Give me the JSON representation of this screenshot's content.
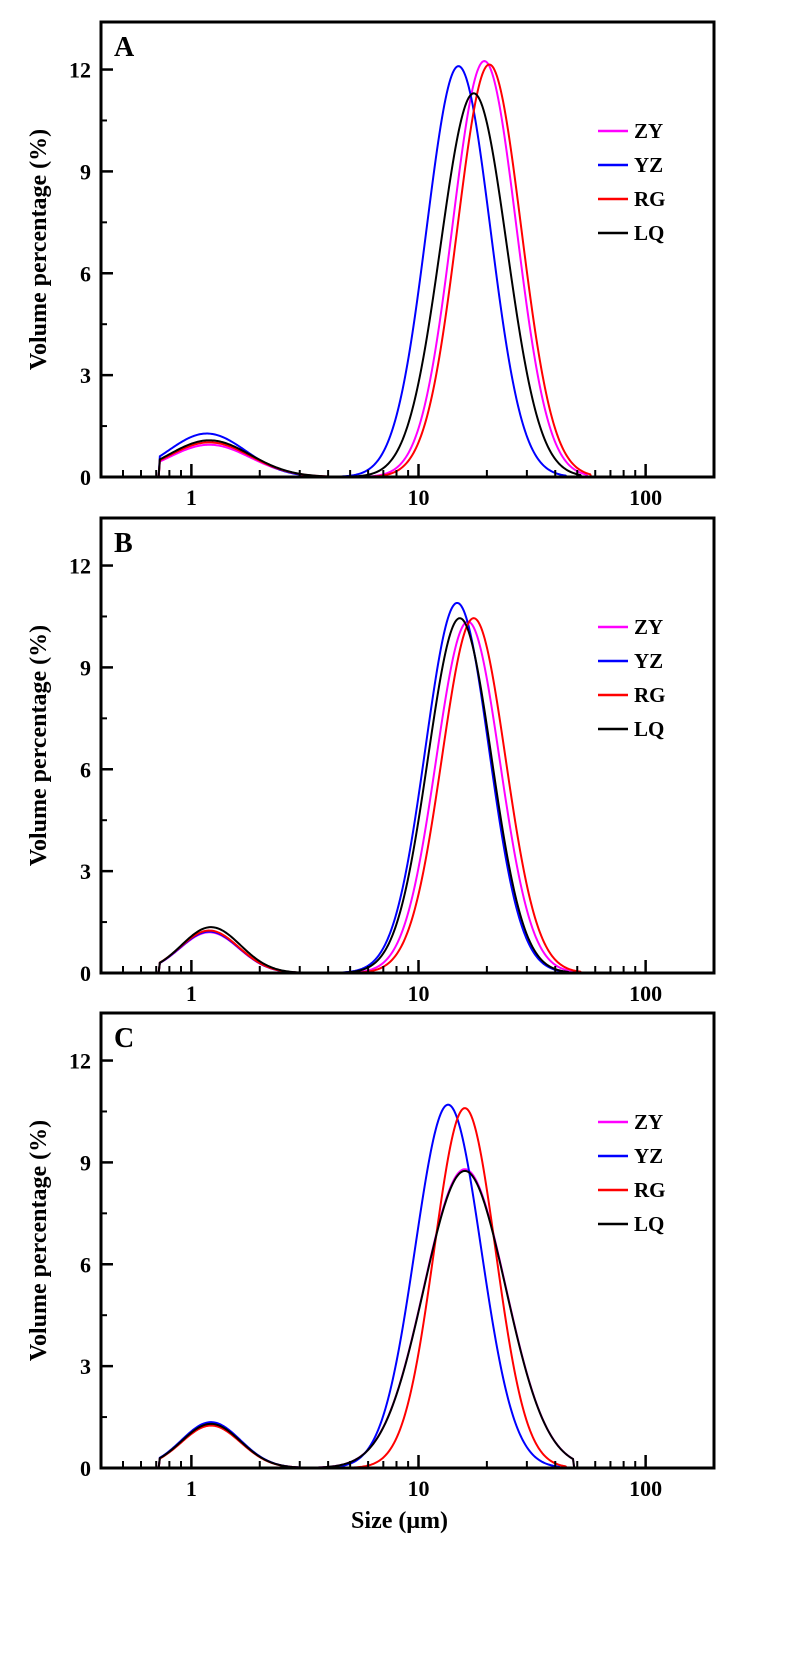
{
  "chart_data": [
    {
      "type": "line",
      "panel_label": "A",
      "ylabel": "Volume percentage (%)",
      "xlabel": "",
      "x_scale": "log",
      "xlim": [
        0.4,
        200
      ],
      "ylim": [
        0,
        13.4
      ],
      "y_ticks": [
        "0",
        "3",
        "6",
        "9",
        "12"
      ],
      "x_ticks": [
        "1",
        "10",
        "100"
      ],
      "legend": {
        "position": "right",
        "entries": [
          "ZY",
          "YZ",
          "RG",
          "LQ"
        ]
      },
      "series": [
        {
          "name": "ZY",
          "color": "#ff00ff",
          "peaks": [
            {
              "amp": 0.95,
              "center": 1.2,
              "sigma": 0.18
            },
            {
              "amp": 12.25,
              "center": 19.5,
              "sigma": 0.14
            }
          ],
          "range": [
            0.72,
            55
          ]
        },
        {
          "name": "YZ",
          "color": "#0000ff",
          "peaks": [
            {
              "amp": 1.28,
              "center": 1.17,
              "sigma": 0.17
            },
            {
              "amp": 12.1,
              "center": 15.0,
              "sigma": 0.14
            }
          ],
          "range": [
            0.72,
            45
          ]
        },
        {
          "name": "RG",
          "color": "#ff0000",
          "peaks": [
            {
              "amp": 1.02,
              "center": 1.2,
              "sigma": 0.18
            },
            {
              "amp": 12.15,
              "center": 20.5,
              "sigma": 0.14
            }
          ],
          "range": [
            0.72,
            57
          ]
        },
        {
          "name": "LQ",
          "color": "#000000",
          "peaks": [
            {
              "amp": 1.08,
              "center": 1.2,
              "sigma": 0.18
            },
            {
              "amp": 11.3,
              "center": 17.5,
              "sigma": 0.145
            }
          ],
          "range": [
            0.72,
            52
          ]
        }
      ]
    },
    {
      "type": "line",
      "panel_label": "B",
      "ylabel": "Volume percentage (%)",
      "xlabel": "",
      "x_scale": "log",
      "xlim": [
        0.4,
        200
      ],
      "ylim": [
        0,
        13.4
      ],
      "y_ticks": [
        "0",
        "3",
        "6",
        "9",
        "12"
      ],
      "x_ticks": [
        "1",
        "10",
        "100"
      ],
      "legend": {
        "position": "right",
        "entries": [
          "ZY",
          "YZ",
          "RG",
          "LQ"
        ]
      },
      "series": [
        {
          "name": "ZY",
          "color": "#ff00ff",
          "peaks": [
            {
              "amp": 1.2,
              "center": 1.2,
              "sigma": 0.13
            },
            {
              "amp": 10.35,
              "center": 16.5,
              "sigma": 0.14
            }
          ],
          "range": [
            0.72,
            50
          ]
        },
        {
          "name": "YZ",
          "color": "#0000ff",
          "peaks": [
            {
              "amp": 1.22,
              "center": 1.2,
              "sigma": 0.13
            },
            {
              "amp": 10.9,
              "center": 14.8,
              "sigma": 0.14
            }
          ],
          "range": [
            0.72,
            45
          ]
        },
        {
          "name": "RG",
          "color": "#ff0000",
          "peaks": [
            {
              "amp": 1.25,
              "center": 1.2,
              "sigma": 0.13
            },
            {
              "amp": 10.45,
              "center": 17.5,
              "sigma": 0.14
            }
          ],
          "range": [
            0.72,
            52
          ]
        },
        {
          "name": "LQ",
          "color": "#000000",
          "peaks": [
            {
              "amp": 1.35,
              "center": 1.22,
              "sigma": 0.13
            },
            {
              "amp": 10.45,
              "center": 15.2,
              "sigma": 0.14
            }
          ],
          "range": [
            0.72,
            46
          ]
        }
      ]
    },
    {
      "type": "line",
      "panel_label": "C",
      "ylabel": "Volume percentage (%)",
      "xlabel": "Size (μm)",
      "x_scale": "log",
      "xlim": [
        0.4,
        200
      ],
      "ylim": [
        0,
        13.4
      ],
      "y_ticks": [
        "0",
        "3",
        "6",
        "9",
        "12"
      ],
      "x_ticks": [
        "1",
        "10",
        "100"
      ],
      "legend": {
        "position": "right",
        "entries": [
          "ZY",
          "YZ",
          "RG",
          "LQ"
        ]
      },
      "series": [
        {
          "name": "ZY",
          "color": "#ff00ff",
          "peaks": [
            {
              "amp": 1.3,
              "center": 1.22,
              "sigma": 0.13
            },
            {
              "amp": 8.8,
              "center": 16.0,
              "sigma": 0.18
            }
          ],
          "range": [
            0.72,
            48
          ]
        },
        {
          "name": "YZ",
          "color": "#0000ff",
          "peaks": [
            {
              "amp": 1.35,
              "center": 1.22,
              "sigma": 0.13
            },
            {
              "amp": 10.7,
              "center": 13.5,
              "sigma": 0.145
            }
          ],
          "range": [
            0.72,
            42
          ]
        },
        {
          "name": "RG",
          "color": "#ff0000",
          "peaks": [
            {
              "amp": 1.25,
              "center": 1.22,
              "sigma": 0.13
            },
            {
              "amp": 10.6,
              "center": 16.0,
              "sigma": 0.135
            }
          ],
          "range": [
            0.72,
            45
          ]
        },
        {
          "name": "LQ",
          "color": "#000000",
          "peaks": [
            {
              "amp": 1.3,
              "center": 1.22,
              "sigma": 0.13
            },
            {
              "amp": 8.75,
              "center": 16.0,
              "sigma": 0.18
            }
          ],
          "range": [
            0.72,
            48
          ]
        }
      ]
    }
  ]
}
